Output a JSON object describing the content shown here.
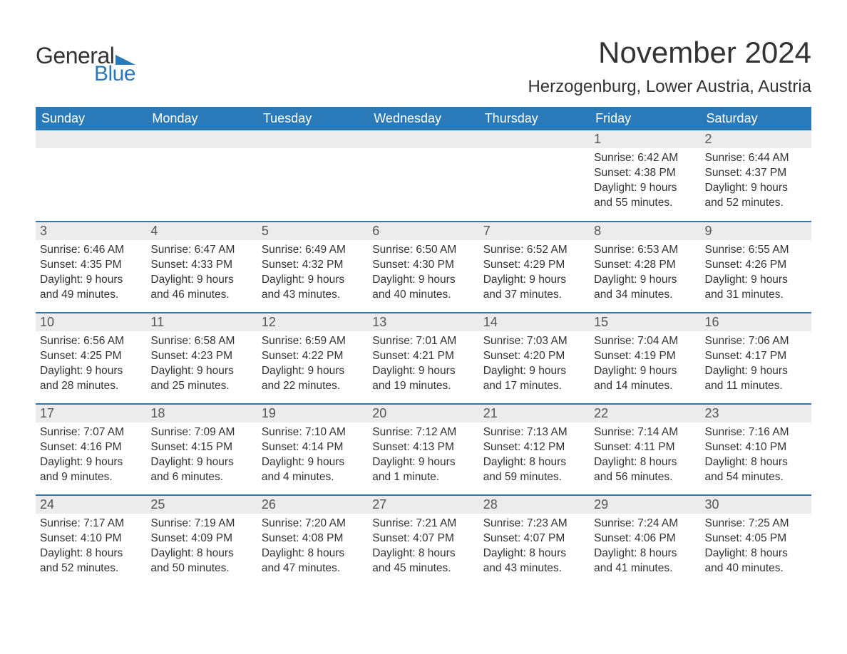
{
  "logo": {
    "text1": "General",
    "text2": "Blue",
    "tri_color": "#2a7ab9"
  },
  "title": "November 2024",
  "location": "Herzogenburg, Lower Austria, Austria",
  "colors": {
    "header_bg": "#2a7ab9",
    "header_text": "#ffffff",
    "daynum_bg": "#ececec",
    "daynum_text": "#555555",
    "body_text": "#333333",
    "week_border": "#2a7ab9"
  },
  "typography": {
    "month_title_size_pt": 32,
    "location_size_pt": 18,
    "day_header_size_pt": 14,
    "daynum_size_pt": 14,
    "body_size_pt": 12
  },
  "day_headers": [
    "Sunday",
    "Monday",
    "Tuesday",
    "Wednesday",
    "Thursday",
    "Friday",
    "Saturday"
  ],
  "weeks": [
    [
      null,
      null,
      null,
      null,
      null,
      {
        "n": "1",
        "sunrise": "6:42 AM",
        "sunset": "4:38 PM",
        "daylight": "9 hours and 55 minutes."
      },
      {
        "n": "2",
        "sunrise": "6:44 AM",
        "sunset": "4:37 PM",
        "daylight": "9 hours and 52 minutes."
      }
    ],
    [
      {
        "n": "3",
        "sunrise": "6:46 AM",
        "sunset": "4:35 PM",
        "daylight": "9 hours and 49 minutes."
      },
      {
        "n": "4",
        "sunrise": "6:47 AM",
        "sunset": "4:33 PM",
        "daylight": "9 hours and 46 minutes."
      },
      {
        "n": "5",
        "sunrise": "6:49 AM",
        "sunset": "4:32 PM",
        "daylight": "9 hours and 43 minutes."
      },
      {
        "n": "6",
        "sunrise": "6:50 AM",
        "sunset": "4:30 PM",
        "daylight": "9 hours and 40 minutes."
      },
      {
        "n": "7",
        "sunrise": "6:52 AM",
        "sunset": "4:29 PM",
        "daylight": "9 hours and 37 minutes."
      },
      {
        "n": "8",
        "sunrise": "6:53 AM",
        "sunset": "4:28 PM",
        "daylight": "9 hours and 34 minutes."
      },
      {
        "n": "9",
        "sunrise": "6:55 AM",
        "sunset": "4:26 PM",
        "daylight": "9 hours and 31 minutes."
      }
    ],
    [
      {
        "n": "10",
        "sunrise": "6:56 AM",
        "sunset": "4:25 PM",
        "daylight": "9 hours and 28 minutes."
      },
      {
        "n": "11",
        "sunrise": "6:58 AM",
        "sunset": "4:23 PM",
        "daylight": "9 hours and 25 minutes."
      },
      {
        "n": "12",
        "sunrise": "6:59 AM",
        "sunset": "4:22 PM",
        "daylight": "9 hours and 22 minutes."
      },
      {
        "n": "13",
        "sunrise": "7:01 AM",
        "sunset": "4:21 PM",
        "daylight": "9 hours and 19 minutes."
      },
      {
        "n": "14",
        "sunrise": "7:03 AM",
        "sunset": "4:20 PM",
        "daylight": "9 hours and 17 minutes."
      },
      {
        "n": "15",
        "sunrise": "7:04 AM",
        "sunset": "4:19 PM",
        "daylight": "9 hours and 14 minutes."
      },
      {
        "n": "16",
        "sunrise": "7:06 AM",
        "sunset": "4:17 PM",
        "daylight": "9 hours and 11 minutes."
      }
    ],
    [
      {
        "n": "17",
        "sunrise": "7:07 AM",
        "sunset": "4:16 PM",
        "daylight": "9 hours and 9 minutes."
      },
      {
        "n": "18",
        "sunrise": "7:09 AM",
        "sunset": "4:15 PM",
        "daylight": "9 hours and 6 minutes."
      },
      {
        "n": "19",
        "sunrise": "7:10 AM",
        "sunset": "4:14 PM",
        "daylight": "9 hours and 4 minutes."
      },
      {
        "n": "20",
        "sunrise": "7:12 AM",
        "sunset": "4:13 PM",
        "daylight": "9 hours and 1 minute."
      },
      {
        "n": "21",
        "sunrise": "7:13 AM",
        "sunset": "4:12 PM",
        "daylight": "8 hours and 59 minutes."
      },
      {
        "n": "22",
        "sunrise": "7:14 AM",
        "sunset": "4:11 PM",
        "daylight": "8 hours and 56 minutes."
      },
      {
        "n": "23",
        "sunrise": "7:16 AM",
        "sunset": "4:10 PM",
        "daylight": "8 hours and 54 minutes."
      }
    ],
    [
      {
        "n": "24",
        "sunrise": "7:17 AM",
        "sunset": "4:10 PM",
        "daylight": "8 hours and 52 minutes."
      },
      {
        "n": "25",
        "sunrise": "7:19 AM",
        "sunset": "4:09 PM",
        "daylight": "8 hours and 50 minutes."
      },
      {
        "n": "26",
        "sunrise": "7:20 AM",
        "sunset": "4:08 PM",
        "daylight": "8 hours and 47 minutes."
      },
      {
        "n": "27",
        "sunrise": "7:21 AM",
        "sunset": "4:07 PM",
        "daylight": "8 hours and 45 minutes."
      },
      {
        "n": "28",
        "sunrise": "7:23 AM",
        "sunset": "4:07 PM",
        "daylight": "8 hours and 43 minutes."
      },
      {
        "n": "29",
        "sunrise": "7:24 AM",
        "sunset": "4:06 PM",
        "daylight": "8 hours and 41 minutes."
      },
      {
        "n": "30",
        "sunrise": "7:25 AM",
        "sunset": "4:05 PM",
        "daylight": "8 hours and 40 minutes."
      }
    ]
  ],
  "labels": {
    "sunrise": "Sunrise: ",
    "sunset": "Sunset: ",
    "daylight": "Daylight: "
  }
}
